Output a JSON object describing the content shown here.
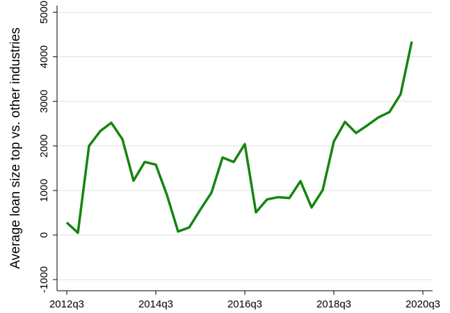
{
  "chart_data": {
    "type": "line",
    "y_label": "Average loan size top vs. other industries",
    "categories": [
      "2012q3",
      null,
      null,
      null,
      null,
      null,
      null,
      null,
      "2014q3",
      null,
      null,
      null,
      null,
      null,
      null,
      null,
      "2016q3",
      null,
      null,
      null,
      null,
      null,
      null,
      null,
      "2018q3",
      null,
      null,
      null,
      null,
      null,
      null,
      null,
      "2020q3"
    ],
    "series": [
      {
        "name": "Average loan size",
        "color": "#15850f",
        "values": [
          280,
          50,
          2000,
          2330,
          2520,
          2150,
          1220,
          1640,
          1580,
          900,
          80,
          170,
          570,
          950,
          1740,
          1640,
          2040,
          510,
          800,
          850,
          830,
          1210,
          620,
          1010,
          2100,
          2540,
          2290,
          2460,
          2640,
          2760,
          3160,
          4340,
          null
        ]
      }
    ],
    "ylim": [
      -1250,
      5150
    ],
    "yticks": [
      -1000,
      0,
      1000,
      2000,
      3000,
      4000,
      5000
    ],
    "grid": true
  }
}
